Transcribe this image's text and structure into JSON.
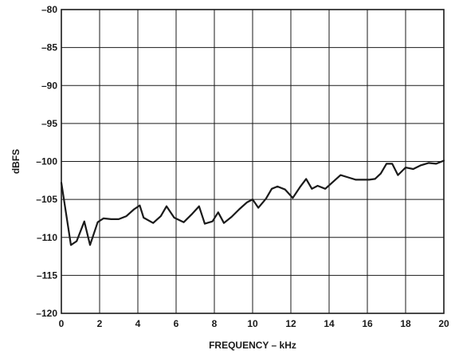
{
  "chart_data": {
    "type": "line",
    "xlabel": "FREQUENCY – kHz",
    "ylabel": "dBFS",
    "xlim": [
      0,
      20
    ],
    "ylim": [
      -120,
      -80
    ],
    "grid": true,
    "x_ticks": [
      0,
      2,
      4,
      6,
      8,
      10,
      12,
      14,
      16,
      18,
      20
    ],
    "y_ticks": [
      -80,
      -85,
      -90,
      -95,
      -100,
      -105,
      -110,
      -115,
      -120
    ],
    "x_tick_labels": [
      "0",
      "2",
      "4",
      "6",
      "8",
      "10",
      "12",
      "14",
      "16",
      "18",
      "20"
    ],
    "y_tick_labels": [
      "–80",
      "–85",
      "–90",
      "–95",
      "–100",
      "–105",
      "–110",
      "–115",
      "–120"
    ],
    "series": [
      {
        "x": [
          0,
          0.5,
          0.8,
          1.2,
          1.5,
          1.9,
          2.2,
          2.6,
          3.0,
          3.4,
          3.8,
          4.1,
          4.3,
          4.8,
          5.2,
          5.5,
          5.9,
          6.4,
          6.8,
          7.2,
          7.5,
          7.9,
          8.2,
          8.5,
          8.9,
          9.3,
          9.7,
          10.0,
          10.3,
          10.7,
          11.0,
          11.3,
          11.7,
          12.1,
          12.5,
          12.8,
          13.1,
          13.4,
          13.8,
          14.2,
          14.6,
          15.0,
          15.4,
          15.8,
          16.1,
          16.4,
          16.7,
          17.0,
          17.3,
          17.6,
          18.0,
          18.4,
          18.8,
          19.2,
          19.6,
          20.0
        ],
        "y": [
          -102.8,
          -111.0,
          -110.5,
          -107.9,
          -111.0,
          -108.0,
          -107.5,
          -107.6,
          -107.6,
          -107.2,
          -106.3,
          -105.8,
          -107.4,
          -108.1,
          -107.2,
          -105.9,
          -107.4,
          -108.0,
          -107.0,
          -105.9,
          -108.2,
          -107.9,
          -106.7,
          -108.1,
          -107.3,
          -106.3,
          -105.4,
          -105.0,
          -106.1,
          -104.9,
          -103.6,
          -103.3,
          -103.7,
          -104.8,
          -103.3,
          -102.3,
          -103.6,
          -103.2,
          -103.6,
          -102.7,
          -101.8,
          -102.1,
          -102.4,
          -102.4,
          -102.4,
          -102.3,
          -101.6,
          -100.3,
          -100.3,
          -101.8,
          -100.8,
          -101.0,
          -100.5,
          -100.2,
          -100.3,
          -99.9
        ]
      }
    ]
  }
}
